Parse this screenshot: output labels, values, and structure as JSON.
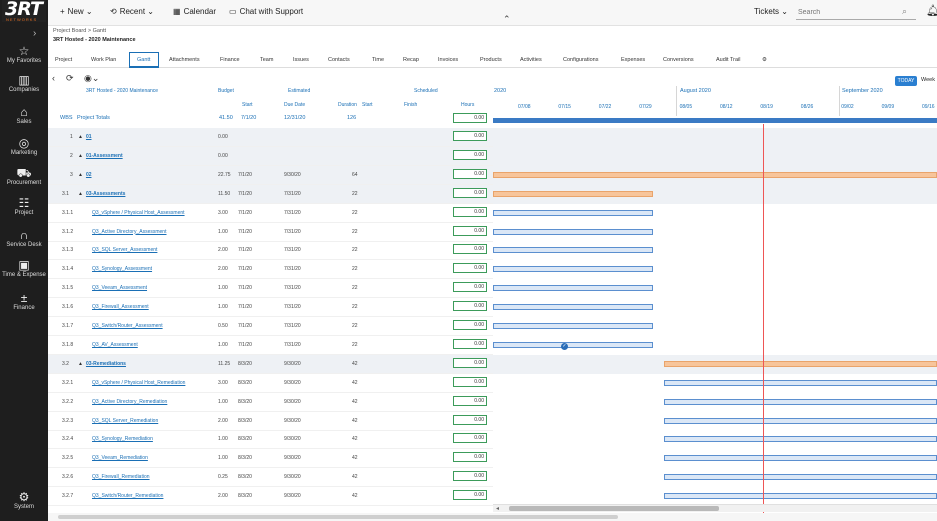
{
  "logo": {
    "text": "3RT",
    "sub": "NETWORKS"
  },
  "leftnav": [
    {
      "label": "My Favorites",
      "icon": "star-icon",
      "glyph": "☆"
    },
    {
      "label": "Companies",
      "icon": "companies-icon",
      "glyph": "▥"
    },
    {
      "label": "Sales",
      "icon": "sales-icon",
      "glyph": "⌂"
    },
    {
      "label": "Marketing",
      "icon": "marketing-icon",
      "glyph": "◎"
    },
    {
      "label": "Procurement",
      "icon": "cart-icon",
      "glyph": "⛟"
    },
    {
      "label": "Project",
      "icon": "project-icon",
      "glyph": "☷"
    },
    {
      "label": "Service Desk",
      "icon": "headset-icon",
      "glyph": "∩"
    },
    {
      "label": "Time & Expense",
      "icon": "time-expense-icon",
      "glyph": "▣"
    },
    {
      "label": "Finance",
      "icon": "finance-icon",
      "glyph": "±"
    },
    {
      "label": "System",
      "icon": "gear-icon",
      "glyph": "⚙"
    }
  ],
  "topbar": {
    "new": "New",
    "recent": "Recent",
    "calendar": "Calendar",
    "chat": "Chat with Support",
    "tickets": "Tickets",
    "search_placeholder": "Search"
  },
  "breadcrumb": {
    "path": "Project Board > Gantt",
    "title": "3RT Hosted - 2020 Maintenance"
  },
  "tabs": [
    "Project",
    "Work Plan",
    "Gantt",
    "Attachments",
    "Finance",
    "Team",
    "Issues",
    "Contacts",
    "Time",
    "Recap",
    "Invoices",
    "Products",
    "Activities",
    "Configurations",
    "Expenses",
    "Conversions",
    "Audit Trail"
  ],
  "toolbar": {
    "today": "TODAY",
    "week": "Week"
  },
  "headers": {
    "project_name": "3RT Hosted - 2020 Maintenance",
    "budget": "Budget",
    "estimated": "Estimated",
    "scheduled": "Scheduled",
    "start": "Start",
    "due_date": "Due Date",
    "duration": "Duration",
    "start2": "Start",
    "finish": "Finish",
    "hours": "Hours",
    "wbs": "WBS",
    "project_totals": "Project Totals"
  },
  "totals": {
    "budget": "41.50",
    "start": "7/1/20",
    "due": "12/31/20",
    "duration": "126",
    "hours": "0.00"
  },
  "timeline": {
    "months": [
      "2020",
      "August 2020",
      "September 2020"
    ],
    "weeks": [
      "07/08",
      "07/15",
      "07/22",
      "07/29",
      "08/05",
      "08/12",
      "08/19",
      "08/26",
      "09/02",
      "09/09",
      "09/16"
    ]
  },
  "rows": [
    {
      "wbs": "1",
      "name": "01",
      "budget": "0.00",
      "start": "",
      "due": "",
      "duration": "",
      "hours": "0.00",
      "type": "phase"
    },
    {
      "wbs": "2",
      "name": "01-Assessment",
      "budget": "0.00",
      "start": "",
      "due": "",
      "duration": "",
      "hours": "0.00",
      "type": "phase"
    },
    {
      "wbs": "3",
      "name": "02",
      "budget": "22.75",
      "start": "7/1/20",
      "due": "9/30/20",
      "duration": "64",
      "hours": "0.00",
      "type": "phase"
    },
    {
      "wbs": "3.1",
      "name": "03-Assessments",
      "budget": "11.50",
      "start": "7/1/20",
      "due": "7/31/20",
      "duration": "22",
      "hours": "0.00",
      "type": "phase"
    },
    {
      "wbs": "3.1.1",
      "name": "Q3_vSphere / Physical Host_Assessment",
      "budget": "3.00",
      "start": "7/1/20",
      "due": "7/31/20",
      "duration": "22",
      "hours": "0.00",
      "type": "task"
    },
    {
      "wbs": "3.1.2",
      "name": "Q3_Active Directory_Assessment",
      "budget": "1.00",
      "start": "7/1/20",
      "due": "7/31/20",
      "duration": "22",
      "hours": "0.00",
      "type": "task"
    },
    {
      "wbs": "3.1.3",
      "name": "Q3_SQL Server_Assessment",
      "budget": "2.00",
      "start": "7/1/20",
      "due": "7/31/20",
      "duration": "22",
      "hours": "0.00",
      "type": "task"
    },
    {
      "wbs": "3.1.4",
      "name": "Q3_Synology_Assessment",
      "budget": "2.00",
      "start": "7/1/20",
      "due": "7/31/20",
      "duration": "22",
      "hours": "0.00",
      "type": "task"
    },
    {
      "wbs": "3.1.5",
      "name": "Q3_Veeam_Assessment",
      "budget": "1.00",
      "start": "7/1/20",
      "due": "7/31/20",
      "duration": "22",
      "hours": "0.00",
      "type": "task"
    },
    {
      "wbs": "3.1.6",
      "name": "Q3_Firewall_Assessment",
      "budget": "1.00",
      "start": "7/1/20",
      "due": "7/31/20",
      "duration": "22",
      "hours": "0.00",
      "type": "task"
    },
    {
      "wbs": "3.1.7",
      "name": "Q3_Switch/Router_Assessment",
      "budget": "0.50",
      "start": "7/1/20",
      "due": "7/31/20",
      "duration": "22",
      "hours": "0.00",
      "type": "task"
    },
    {
      "wbs": "3.1.8",
      "name": "Q3_AV_Assessment",
      "budget": "1.00",
      "start": "7/1/20",
      "due": "7/31/20",
      "duration": "22",
      "hours": "0.00",
      "type": "task"
    },
    {
      "wbs": "3.2",
      "name": "03-Remediations",
      "budget": "11.25",
      "start": "8/3/20",
      "due": "9/30/20",
      "duration": "42",
      "hours": "0.00",
      "type": "phase"
    },
    {
      "wbs": "3.2.1",
      "name": "Q3_vSphere / Physical Host_Remediation",
      "budget": "3.00",
      "start": "8/3/20",
      "due": "9/30/20",
      "duration": "42",
      "hours": "0.00",
      "type": "task"
    },
    {
      "wbs": "3.2.2",
      "name": "Q3_Active Directory_Remediation",
      "budget": "1.00",
      "start": "8/3/20",
      "due": "9/30/20",
      "duration": "42",
      "hours": "0.00",
      "type": "task"
    },
    {
      "wbs": "3.2.3",
      "name": "Q3_SQL Server_Remediation",
      "budget": "2.00",
      "start": "8/3/20",
      "due": "9/30/20",
      "duration": "42",
      "hours": "0.00",
      "type": "task"
    },
    {
      "wbs": "3.2.4",
      "name": "Q3_Synology_Remediation",
      "budget": "1.00",
      "start": "8/3/20",
      "due": "9/30/20",
      "duration": "42",
      "hours": "0.00",
      "type": "task"
    },
    {
      "wbs": "3.2.5",
      "name": "Q3_Veeam_Remediation",
      "budget": "1.00",
      "start": "8/3/20",
      "due": "9/30/20",
      "duration": "42",
      "hours": "0.00",
      "type": "task"
    },
    {
      "wbs": "3.2.6",
      "name": "Q3_Firewall_Remediation",
      "budget": "0.25",
      "start": "8/3/20",
      "due": "9/30/20",
      "duration": "42",
      "hours": "0.00",
      "type": "task"
    },
    {
      "wbs": "3.2.7",
      "name": "Q3_Switch/Router_Remediation",
      "budget": "2.00",
      "start": "8/3/20",
      "due": "9/30/20",
      "duration": "42",
      "hours": "0.00",
      "type": "task"
    }
  ],
  "colors": {
    "accent": "#1a6fb5",
    "phase_bar": "#f7c59b",
    "task_bar": "#dbe7f6",
    "today_line": "#ee5555",
    "nav_bg": "#1e1e1e"
  }
}
